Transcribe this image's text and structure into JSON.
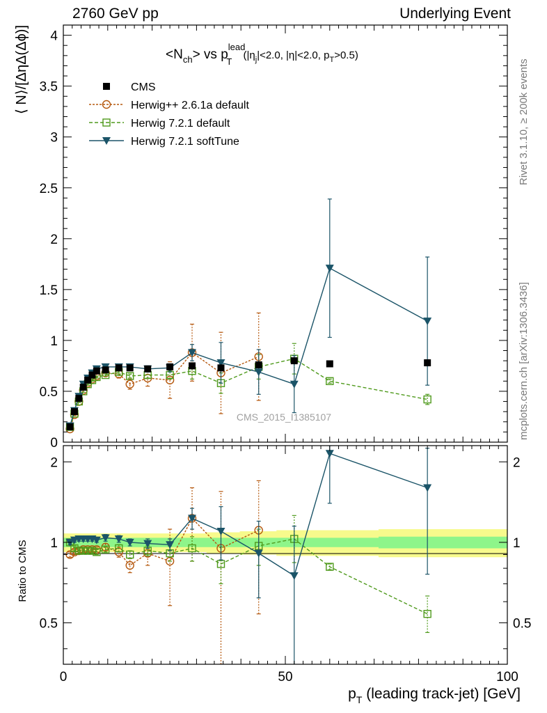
{
  "header": {
    "left": "2760 GeV pp",
    "right": "Underlying Event"
  },
  "side_labels": {
    "rivet": "Rivet 3.1.10, ≥ 200k events",
    "mcplots": "mcplots.cern.ch [arXiv:1306.3436]"
  },
  "watermark": "CMS_2015_I1385107",
  "colors": {
    "cms": "#000000",
    "herwigpp": "#b5580e",
    "herwig721": "#4f9a1c",
    "softtune": "#1b5468",
    "band_outer": "#f7fa8c",
    "band_inner": "#8ef58a"
  },
  "chart_data": [
    {
      "type": "scatter",
      "title_parts": {
        "main": "<N",
        "main_sub": "ch",
        "main_end": "> vs p",
        "p_sup": "lead",
        "p_sub": "T",
        "cuts_a": " (|η",
        "cuts_a_sub": "j",
        "cuts_b": "|<2.0, |η|<2.0, p",
        "cuts_b_sub": "T",
        "cuts_c": ">0.5)"
      },
      "ylabel": "⟨ N⟩/[ΔηΔ(Δϕ)]",
      "xlabel_main": "p",
      "xlabel_sub": "T",
      "xlabel_rest": " (leading track-jet) [GeV]",
      "xlim": [
        0,
        100
      ],
      "ylim": [
        0,
        4.1
      ],
      "yticks": [
        "0",
        "0.5",
        "1",
        "1.5",
        "2",
        "2.5",
        "3",
        "3.5",
        "4"
      ],
      "xticks": [
        "0",
        "50",
        "100"
      ],
      "legend": [
        "CMS",
        "Herwig++ 2.6.1a default",
        "Herwig 7.2.1 default",
        "Herwig 7.2.1 softTune"
      ],
      "series": [
        {
          "name": "CMS",
          "marker": "filled-square",
          "x": [
            1.5,
            2.5,
            3.5,
            4.5,
            5.5,
            6.5,
            7.5,
            9.5,
            12.5,
            15.0,
            19.0,
            24.0,
            29.0,
            35.5,
            44.0,
            52.0,
            60.0,
            82.0
          ],
          "y": [
            0.15,
            0.3,
            0.43,
            0.54,
            0.61,
            0.66,
            0.7,
            0.71,
            0.73,
            0.73,
            0.72,
            0.74,
            0.75,
            0.73,
            0.76,
            0.8,
            0.77,
            0.78
          ],
          "yerr": [
            0.01,
            0.01,
            0.01,
            0.01,
            0.01,
            0.01,
            0.01,
            0.01,
            0.01,
            0.01,
            0.01,
            0.01,
            0.01,
            0.01,
            0.02,
            0.02,
            0.02,
            0.03
          ]
        },
        {
          "name": "Herwig++ 2.6.1a default",
          "marker": "open-circle",
          "x": [
            1.5,
            2.5,
            3.5,
            4.5,
            5.5,
            6.5,
            7.5,
            9.5,
            12.5,
            15.0,
            19.0,
            24.0,
            29.0,
            35.5,
            44.0
          ],
          "y": [
            0.13,
            0.27,
            0.4,
            0.51,
            0.58,
            0.62,
            0.65,
            0.68,
            0.67,
            0.57,
            0.63,
            0.61,
            0.88,
            0.68,
            0.84
          ],
          "yerr": [
            0.01,
            0.01,
            0.01,
            0.02,
            0.02,
            0.02,
            0.02,
            0.03,
            0.04,
            0.05,
            0.08,
            0.18,
            0.28,
            0.4,
            0.43
          ]
        },
        {
          "name": "Herwig 7.2.1 default",
          "marker": "open-square",
          "x": [
            1.5,
            2.5,
            3.5,
            4.5,
            5.5,
            6.5,
            7.5,
            9.5,
            12.5,
            15.0,
            19.0,
            24.0,
            29.0,
            35.5,
            44.0,
            52.0,
            60.0,
            82.0
          ],
          "y": [
            0.15,
            0.28,
            0.4,
            0.5,
            0.57,
            0.61,
            0.64,
            0.66,
            0.69,
            0.65,
            0.66,
            0.66,
            0.7,
            0.58,
            0.74,
            0.82,
            0.6,
            0.42
          ],
          "yerr": [
            0.01,
            0.01,
            0.01,
            0.01,
            0.01,
            0.01,
            0.01,
            0.01,
            0.02,
            0.02,
            0.03,
            0.04,
            0.08,
            0.1,
            0.12,
            0.15,
            0.02,
            0.05
          ]
        },
        {
          "name": "Herwig 7.2.1 softTune",
          "marker": "filled-triangle-down",
          "x": [
            1.5,
            2.5,
            3.5,
            4.5,
            5.5,
            6.5,
            7.5,
            9.5,
            12.5,
            15.0,
            19.0,
            24.0,
            29.0,
            35.5,
            44.0,
            52.0,
            60.0,
            82.0
          ],
          "y": [
            0.16,
            0.31,
            0.45,
            0.57,
            0.63,
            0.68,
            0.72,
            0.74,
            0.74,
            0.74,
            0.72,
            0.73,
            0.88,
            0.78,
            0.69,
            0.57,
            1.71,
            1.19
          ],
          "yerr": [
            0.01,
            0.01,
            0.01,
            0.01,
            0.01,
            0.01,
            0.01,
            0.02,
            0.02,
            0.02,
            0.03,
            0.04,
            0.08,
            0.2,
            0.22,
            0.28,
            0.68,
            0.63
          ]
        }
      ]
    },
    {
      "type": "scatter",
      "title": "",
      "ylabel": "Ratio to CMS",
      "xlim": [
        0,
        100
      ],
      "ylim": [
        0.35,
        2.3
      ],
      "yscale": "log",
      "yticks": [
        "0.5",
        "1",
        "2"
      ],
      "band": {
        "x": [
          1.5,
          2.5,
          3.5,
          4.5,
          5.5,
          6.5,
          7.5,
          9.5,
          12.5,
          15.0,
          19.0,
          24.0,
          29.0,
          35.5,
          44.0,
          52.0,
          60.0,
          82.0
        ],
        "inner": [
          0.04,
          0.04,
          0.04,
          0.04,
          0.04,
          0.04,
          0.04,
          0.04,
          0.04,
          0.04,
          0.04,
          0.04,
          0.04,
          0.04,
          0.04,
          0.04,
          0.04,
          0.05
        ],
        "outer": [
          0.08,
          0.08,
          0.08,
          0.08,
          0.08,
          0.08,
          0.08,
          0.08,
          0.08,
          0.08,
          0.08,
          0.08,
          0.08,
          0.09,
          0.1,
          0.11,
          0.11,
          0.12
        ]
      },
      "series": [
        {
          "name": "Herwig++ 2.6.1a default",
          "marker": "open-circle",
          "x": [
            1.5,
            2.5,
            3.5,
            4.5,
            5.5,
            6.5,
            7.5,
            9.5,
            12.5,
            15.0,
            19.0,
            24.0,
            29.0,
            35.5,
            44.0
          ],
          "y": [
            0.9,
            0.92,
            0.93,
            0.94,
            0.94,
            0.94,
            0.94,
            0.96,
            0.92,
            0.82,
            0.91,
            0.85,
            1.23,
            0.95,
            1.11
          ],
          "ylo": [
            0.88,
            0.9,
            0.91,
            0.92,
            0.92,
            0.92,
            0.92,
            0.93,
            0.88,
            0.77,
            0.82,
            0.58,
            0.85,
            0.35,
            0.54
          ],
          "yhi": [
            0.92,
            0.94,
            0.95,
            0.96,
            0.96,
            0.96,
            0.96,
            0.99,
            0.96,
            0.87,
            1.0,
            1.12,
            1.6,
            1.55,
            1.7
          ]
        },
        {
          "name": "Herwig 7.2.1 default",
          "marker": "open-square",
          "x": [
            1.5,
            2.5,
            3.5,
            4.5,
            5.5,
            6.5,
            7.5,
            9.5,
            12.5,
            15.0,
            19.0,
            24.0,
            29.0,
            35.5,
            44.0,
            52.0,
            60.0,
            82.0
          ],
          "y": [
            1.0,
            0.95,
            0.93,
            0.93,
            0.93,
            0.93,
            0.92,
            0.94,
            0.95,
            0.9,
            0.93,
            0.91,
            0.95,
            0.83,
            0.97,
            1.03,
            0.81,
            0.54
          ],
          "ylo": [
            0.98,
            0.93,
            0.91,
            0.91,
            0.91,
            0.91,
            0.9,
            0.92,
            0.92,
            0.87,
            0.89,
            0.85,
            0.85,
            0.7,
            0.82,
            0.84,
            0.79,
            0.46
          ],
          "yhi": [
            1.02,
            0.97,
            0.95,
            0.95,
            0.95,
            0.95,
            0.94,
            0.96,
            0.98,
            0.93,
            0.97,
            0.97,
            1.05,
            0.96,
            1.12,
            1.26,
            0.83,
            0.63
          ]
        },
        {
          "name": "Herwig 7.2.1 softTune",
          "marker": "filled-triangle-down",
          "x": [
            1.5,
            2.5,
            3.5,
            4.5,
            5.5,
            6.5,
            7.5,
            9.5,
            12.5,
            15.0,
            19.0,
            24.0,
            29.0,
            35.5,
            44.0,
            52.0,
            60.0,
            82.0
          ],
          "y": [
            1.0,
            1.02,
            1.03,
            1.03,
            1.03,
            1.03,
            1.02,
            1.04,
            1.03,
            1.0,
            0.99,
            0.98,
            1.23,
            1.1,
            0.91,
            0.75,
            2.15,
            1.6
          ],
          "ylo": [
            0.98,
            1.0,
            1.01,
            1.01,
            1.01,
            1.01,
            1.0,
            1.01,
            1.0,
            0.97,
            0.95,
            0.93,
            1.12,
            0.86,
            0.62,
            0.32,
            1.4,
            0.76
          ],
          "yhi": [
            1.02,
            1.04,
            1.05,
            1.05,
            1.05,
            1.05,
            1.04,
            1.07,
            1.06,
            1.03,
            1.03,
            1.03,
            1.34,
            1.36,
            1.2,
            1.15,
            2.3,
            2.25
          ]
        }
      ]
    }
  ]
}
